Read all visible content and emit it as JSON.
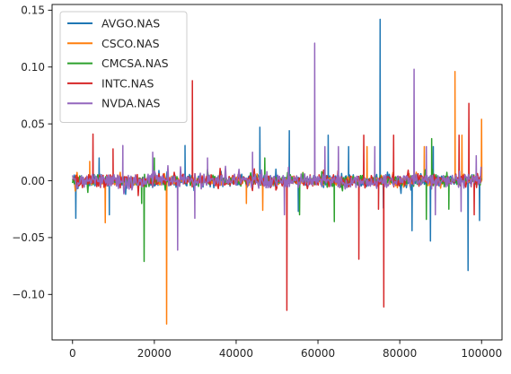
{
  "chart_data": {
    "type": "line",
    "title": "",
    "xlabel": "",
    "ylabel": "",
    "xlim": [
      -5000,
      105000
    ],
    "ylim": [
      -0.14,
      0.155
    ],
    "x_ticks": [
      0,
      20000,
      40000,
      60000,
      80000,
      100000
    ],
    "x_tick_labels": [
      "0",
      "20000",
      "40000",
      "60000",
      "80000",
      "100000"
    ],
    "y_ticks": [
      0.15,
      0.1,
      0.05,
      0.0,
      -0.05,
      -0.1
    ],
    "y_tick_labels": [
      "0.15",
      "0.10",
      "0.05",
      "0.00",
      "−0.05",
      "−0.10"
    ],
    "grid": false,
    "legend_position": "top-left",
    "n_points": 100000,
    "series": [
      {
        "name": "AVGO.NAS",
        "color": "#1f77b4",
        "noise_amplitude": 0.007,
        "spikes": [
          [
            800,
            -0.033
          ],
          [
            6500,
            0.02
          ],
          [
            9000,
            -0.03
          ],
          [
            27500,
            0.031
          ],
          [
            45800,
            0.047
          ],
          [
            53000,
            0.044
          ],
          [
            55200,
            -0.027
          ],
          [
            62500,
            0.04
          ],
          [
            67500,
            0.03
          ],
          [
            75200,
            0.142
          ],
          [
            76000,
            -0.024
          ],
          [
            83000,
            -0.044
          ],
          [
            87500,
            -0.053
          ],
          [
            88200,
            0.03
          ],
          [
            96700,
            -0.079
          ],
          [
            99500,
            -0.035
          ]
        ]
      },
      {
        "name": "CSCO.NAS",
        "color": "#ff7f0e",
        "noise_amplitude": 0.005,
        "spikes": [
          [
            4200,
            0.017
          ],
          [
            8000,
            -0.037
          ],
          [
            23000,
            -0.126
          ],
          [
            42500,
            -0.02
          ],
          [
            46500,
            -0.026
          ],
          [
            72000,
            0.03
          ],
          [
            86000,
            0.03
          ],
          [
            93500,
            0.096
          ],
          [
            95200,
            0.04
          ],
          [
            100000,
            0.054
          ]
        ]
      },
      {
        "name": "CMCSA.NAS",
        "color": "#2ca02c",
        "noise_amplitude": 0.006,
        "spikes": [
          [
            17500,
            -0.071
          ],
          [
            16900,
            -0.02
          ],
          [
            20000,
            0.02
          ],
          [
            47000,
            0.02
          ],
          [
            55500,
            -0.03
          ],
          [
            64000,
            -0.036
          ],
          [
            87800,
            0.037
          ],
          [
            86500,
            -0.034
          ],
          [
            92000,
            -0.025
          ]
        ]
      },
      {
        "name": "INTC.NAS",
        "color": "#d62728",
        "noise_amplitude": 0.007,
        "spikes": [
          [
            5000,
            0.041
          ],
          [
            9900,
            0.028
          ],
          [
            29300,
            0.088
          ],
          [
            52400,
            -0.114
          ],
          [
            70000,
            -0.069
          ],
          [
            71200,
            0.04
          ],
          [
            74800,
            -0.025
          ],
          [
            76100,
            -0.111
          ],
          [
            78500,
            0.04
          ],
          [
            94500,
            0.04
          ],
          [
            96900,
            0.068
          ],
          [
            98200,
            -0.03
          ]
        ]
      },
      {
        "name": "NVDA.NAS",
        "color": "#9467bd",
        "noise_amplitude": 0.008,
        "spikes": [
          [
            12300,
            0.031
          ],
          [
            19600,
            0.025
          ],
          [
            25700,
            -0.061
          ],
          [
            29900,
            -0.033
          ],
          [
            33000,
            0.02
          ],
          [
            44000,
            0.025
          ],
          [
            51800,
            -0.03
          ],
          [
            59200,
            0.121
          ],
          [
            61700,
            0.03
          ],
          [
            65000,
            0.03
          ],
          [
            73900,
            0.03
          ],
          [
            83500,
            0.098
          ],
          [
            86500,
            0.03
          ],
          [
            88700,
            -0.03
          ],
          [
            95000,
            -0.027
          ],
          [
            98700,
            0.022
          ]
        ]
      }
    ]
  }
}
